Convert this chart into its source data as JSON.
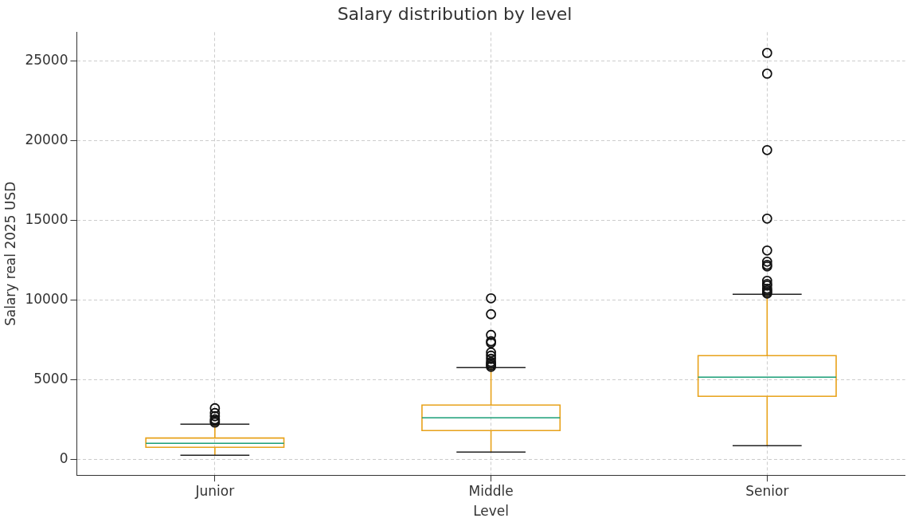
{
  "chart_data": {
    "type": "box",
    "title": "Salary distribution by level",
    "xlabel": "Level",
    "ylabel": "Salary real 2025 USD",
    "categories": [
      "Junior",
      "Middle",
      "Senior"
    ],
    "boxes": [
      {
        "low": 250,
        "q1": 750,
        "median": 1000,
        "q3": 1330,
        "high": 2200,
        "outliers": [
          2300,
          2400,
          2500,
          2700,
          2900,
          3200
        ]
      },
      {
        "low": 450,
        "q1": 1800,
        "median": 2600,
        "q3": 3400,
        "high": 5750,
        "outliers": [
          5800,
          5900,
          6000,
          6100,
          6300,
          6500,
          6700,
          7300,
          7400,
          7800,
          9100,
          10100
        ]
      },
      {
        "low": 850,
        "q1": 3950,
        "median": 5150,
        "q3": 6500,
        "high": 10350,
        "outliers": [
          10400,
          10500,
          10600,
          10700,
          10900,
          11000,
          11200,
          12100,
          12200,
          12400,
          13100,
          15100,
          19400,
          24200,
          25500
        ]
      }
    ],
    "color": "#e8a21a",
    "marker": "circle",
    "ylim": [
      -1000,
      26800
    ],
    "yticks": [
      0,
      5000,
      10000,
      15000,
      20000,
      25000
    ],
    "grid": true
  }
}
